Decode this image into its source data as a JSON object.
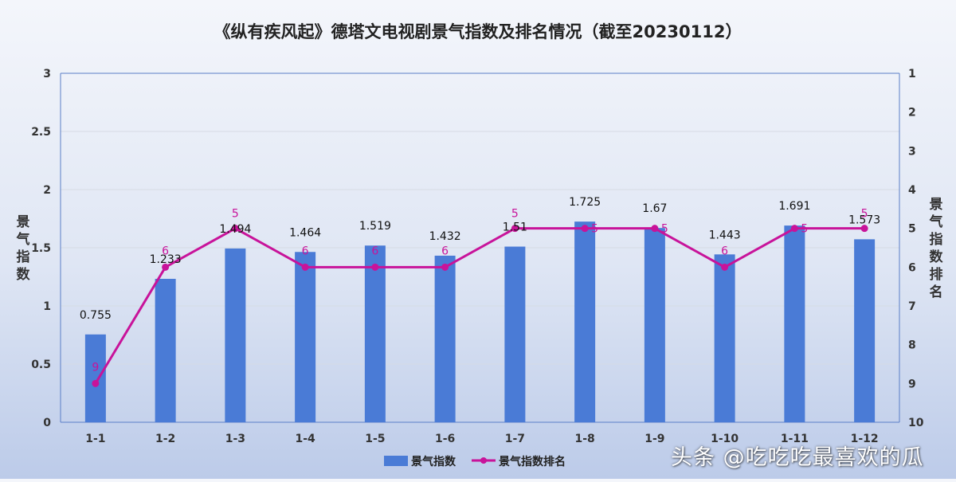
{
  "chart_data": {
    "type": "bar",
    "title": "《纵有疾风起》德塔文电视剧景气指数及排名情况（截至20230112）",
    "categories": [
      "1-1",
      "1-2",
      "1-3",
      "1-4",
      "1-5",
      "1-6",
      "1-7",
      "1-8",
      "1-9",
      "1-10",
      "1-11",
      "1-12"
    ],
    "series": [
      {
        "name": "景气指数",
        "axis": "left",
        "kind": "bar",
        "color": "#4a7bd6",
        "values": [
          0.755,
          1.233,
          1.494,
          1.464,
          1.519,
          1.432,
          1.51,
          1.725,
          1.67,
          1.443,
          1.691,
          1.573
        ]
      },
      {
        "name": "景气指数排名",
        "axis": "right",
        "kind": "line",
        "color": "#c8139a",
        "values": [
          9,
          6,
          5,
          6,
          6,
          6,
          5,
          5,
          5,
          6,
          5,
          5
        ]
      }
    ],
    "ylabel": "景气指数",
    "y2label": "景气指数排名",
    "ylim": [
      0,
      3
    ],
    "yticks": [
      "0",
      "0.5",
      "1",
      "1.5",
      "2",
      "2.5",
      "3"
    ],
    "y2lim": [
      1,
      10
    ],
    "y2_inverted": true,
    "y2ticks": [
      "1",
      "2",
      "3",
      "4",
      "5",
      "6",
      "7",
      "8",
      "9",
      "10"
    ],
    "grid": true,
    "legend_position": "bottom-center"
  },
  "watermark": "头条 @吃吃吃最喜欢的瓜"
}
